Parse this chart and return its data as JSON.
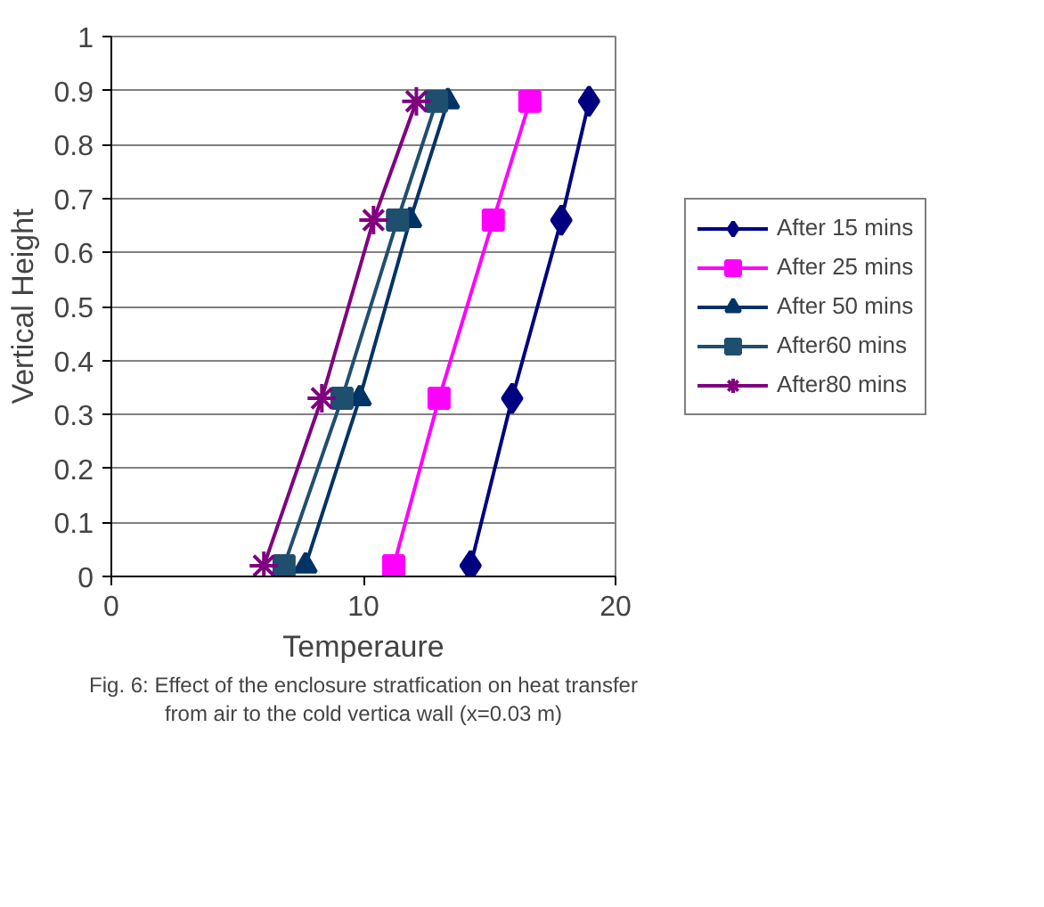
{
  "chart_data": {
    "type": "line",
    "xlabel": "Temperaure",
    "ylabel": "Vertical Height",
    "annotations": [
      "Fig. 6: Effect of the enclosure stratfication on heat transfer from air to the cold vertica wall (x=0.03 m)"
    ],
    "xlim": [
      0,
      20
    ],
    "xticks": [
      0,
      10,
      20
    ],
    "ylim": [
      0,
      1
    ],
    "yticks": [
      0,
      0.1,
      0.2,
      0.3,
      0.4,
      0.5,
      0.6,
      0.7,
      0.8,
      0.9,
      1
    ],
    "grid": "y",
    "legend": "right",
    "series": [
      {
        "name": "After 15 mins",
        "color": "#000080",
        "marker": "diamond",
        "x": [
          14.25,
          15.9,
          17.85,
          18.95
        ],
        "values": [
          0.02,
          0.33,
          0.66,
          0.88
        ]
      },
      {
        "name": "After 25 mins",
        "color": "#ff00ff",
        "marker": "square",
        "x": [
          11.2,
          13.0,
          15.15,
          16.6
        ],
        "values": [
          0.02,
          0.33,
          0.66,
          0.88
        ]
      },
      {
        "name": "After 50 mins",
        "color": "#003366",
        "marker": "triangle",
        "x": [
          7.7,
          9.85,
          11.85,
          13.35
        ],
        "values": [
          0.02,
          0.33,
          0.66,
          0.88
        ]
      },
      {
        "name": "After60 mins",
        "color": "#1f4f6f",
        "marker": "square",
        "x": [
          6.85,
          9.15,
          11.35,
          12.9
        ],
        "values": [
          0.02,
          0.33,
          0.66,
          0.88
        ]
      },
      {
        "name": "After80 mins",
        "color": "#800080",
        "marker": "cross",
        "x": [
          6.05,
          8.35,
          10.4,
          12.1
        ],
        "values": [
          0.02,
          0.33,
          0.66,
          0.88
        ]
      }
    ]
  }
}
